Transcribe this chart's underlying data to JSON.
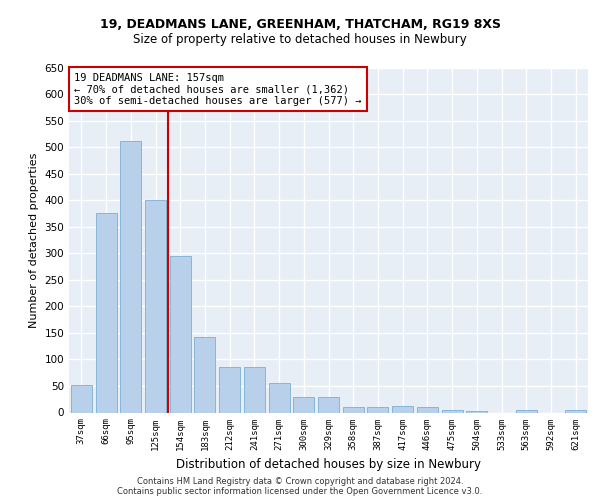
{
  "title1": "19, DEADMANS LANE, GREENHAM, THATCHAM, RG19 8XS",
  "title2": "Size of property relative to detached houses in Newbury",
  "xlabel": "Distribution of detached houses by size in Newbury",
  "ylabel": "Number of detached properties",
  "categories": [
    "37sqm",
    "66sqm",
    "95sqm",
    "125sqm",
    "154sqm",
    "183sqm",
    "212sqm",
    "241sqm",
    "271sqm",
    "300sqm",
    "329sqm",
    "358sqm",
    "387sqm",
    "417sqm",
    "446sqm",
    "475sqm",
    "504sqm",
    "533sqm",
    "563sqm",
    "592sqm",
    "621sqm"
  ],
  "values": [
    51,
    375,
    512,
    400,
    295,
    142,
    85,
    85,
    55,
    30,
    30,
    10,
    10,
    12,
    10,
    5,
    2,
    0,
    5,
    0,
    5
  ],
  "bar_color": "#b8d0ea",
  "bar_edge_color": "#7aafd4",
  "bg_color": "#e8eef6",
  "grid_color": "#ffffff",
  "vline_x": 3.5,
  "vline_color": "#cc0000",
  "annotation_line1": "19 DEADMANS LANE: 157sqm",
  "annotation_line2": "← 70% of detached houses are smaller (1,362)",
  "annotation_line3": "30% of semi-detached houses are larger (577) →",
  "annotation_box_color": "#ffffff",
  "annotation_box_edge": "#cc0000",
  "footer1": "Contains HM Land Registry data © Crown copyright and database right 2024.",
  "footer2": "Contains public sector information licensed under the Open Government Licence v3.0.",
  "ylim": [
    0,
    650
  ],
  "yticks": [
    0,
    50,
    100,
    150,
    200,
    250,
    300,
    350,
    400,
    450,
    500,
    550,
    600,
    650
  ]
}
